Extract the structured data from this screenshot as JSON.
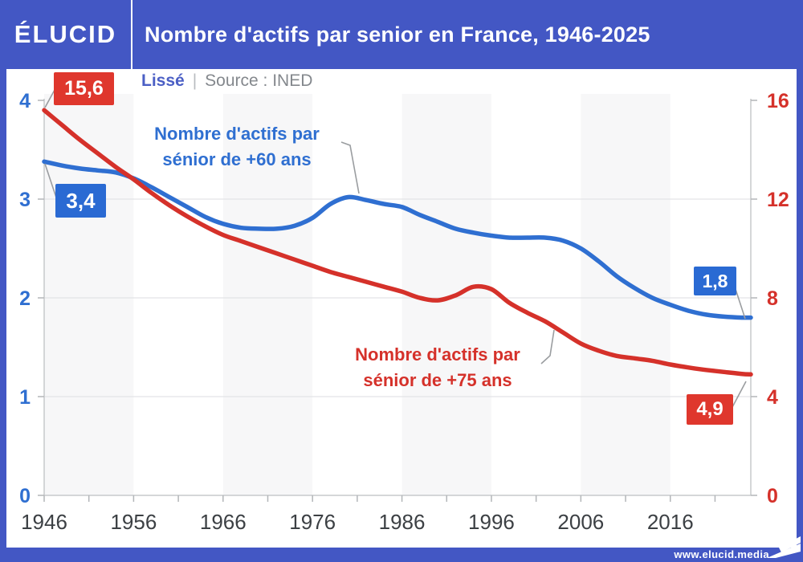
{
  "header": {
    "logo": "ÉLUCID",
    "title": "Nombre d'actifs par senior en France, 1946-2025"
  },
  "subtitle": {
    "smoothing": "Lissé",
    "separator": "|",
    "source": "Source : INED"
  },
  "footer": {
    "website": "www.elucid.media"
  },
  "colors": {
    "brand_blue": "#4357c4",
    "line_blue": "#2f6fd1",
    "line_red": "#d5312a",
    "badge_blue": "#2a6ad3",
    "badge_red": "#df372d",
    "band_gray": "#f7f7f8",
    "grid": "#e3e4e6",
    "axis": "#c7cacc",
    "tick": "#b3b6b9",
    "connector": "#9a9da0",
    "x_label": "#3c4044"
  },
  "annotations": {
    "start_red": "15,6",
    "start_blue": "3,4",
    "end_blue": "1,8",
    "end_red": "4,9",
    "blue_label_line1": "Nombre d'actifs par",
    "blue_label_line2": "sénior de +60 ans",
    "red_label_line1": "Nombre d'actifs par",
    "red_label_line2": "sénior de +75 ans"
  },
  "chart_data": {
    "type": "line",
    "title": "Nombre d'actifs par senior en France, 1946-2025",
    "x_axis": {
      "range": [
        1946,
        2025
      ],
      "tick_labels": [
        "1946",
        "1956",
        "1966",
        "1976",
        "1986",
        "1996",
        "2006",
        "2016"
      ],
      "minor_tick_step": 5
    },
    "y_axis_left": {
      "range": [
        0,
        4
      ],
      "ticks": [
        {
          "label": "4",
          "v": 4
        },
        {
          "label": "3",
          "v": 3
        },
        {
          "label": "2",
          "v": 2
        },
        {
          "label": "1",
          "v": 1
        },
        {
          "label": "0",
          "v": 0
        }
      ]
    },
    "y_axis_right": {
      "range": [
        0,
        16
      ],
      "ticks": [
        {
          "label": "16",
          "v": 16
        },
        {
          "label": "12",
          "v": 12
        },
        {
          "label": "8",
          "v": 8
        },
        {
          "label": "4",
          "v": 4
        },
        {
          "label": "0",
          "v": 0
        }
      ]
    },
    "gridlines_left_values": [
      1,
      2,
      3
    ],
    "shaded_decades_start_years": [
      1946,
      1966,
      1986,
      2006
    ],
    "legend_position": "on-chart labels",
    "grid": true,
    "years": [
      1946,
      1948,
      1950,
      1952,
      1954,
      1956,
      1958,
      1960,
      1962,
      1964,
      1966,
      1968,
      1970,
      1972,
      1974,
      1976,
      1978,
      1980,
      1982,
      1984,
      1986,
      1988,
      1990,
      1992,
      1994,
      1996,
      1998,
      2000,
      2002,
      2004,
      2006,
      2008,
      2010,
      2012,
      2014,
      2016,
      2018,
      2020,
      2022,
      2024,
      2025
    ],
    "series": [
      {
        "name": "Nombre d'actifs par sénior de +60 ans",
        "axis": "left",
        "color_key": "line_blue",
        "start_label": "3,4",
        "end_label": "1,8",
        "values": [
          3.38,
          3.34,
          3.31,
          3.29,
          3.27,
          3.21,
          3.12,
          3.02,
          2.92,
          2.82,
          2.75,
          2.71,
          2.7,
          2.7,
          2.73,
          2.81,
          2.95,
          3.02,
          2.99,
          2.95,
          2.92,
          2.84,
          2.77,
          2.7,
          2.66,
          2.63,
          2.61,
          2.61,
          2.61,
          2.58,
          2.5,
          2.37,
          2.22,
          2.1,
          2.0,
          1.93,
          1.87,
          1.83,
          1.81,
          1.8,
          1.8
        ]
      },
      {
        "name": "Nombre d'actifs par sénior de +75 ans",
        "axis": "right",
        "color_key": "line_red",
        "start_label": "15,6",
        "end_label": "4,9",
        "values": [
          15.6,
          15.0,
          14.4,
          13.85,
          13.3,
          12.8,
          12.25,
          11.75,
          11.3,
          10.9,
          10.55,
          10.3,
          10.05,
          9.8,
          9.55,
          9.3,
          9.05,
          8.85,
          8.65,
          8.45,
          8.25,
          8.0,
          7.9,
          8.1,
          8.45,
          8.35,
          7.8,
          7.4,
          7.05,
          6.6,
          6.15,
          5.86,
          5.65,
          5.55,
          5.45,
          5.3,
          5.18,
          5.08,
          5.0,
          4.92,
          4.9
        ]
      }
    ]
  }
}
